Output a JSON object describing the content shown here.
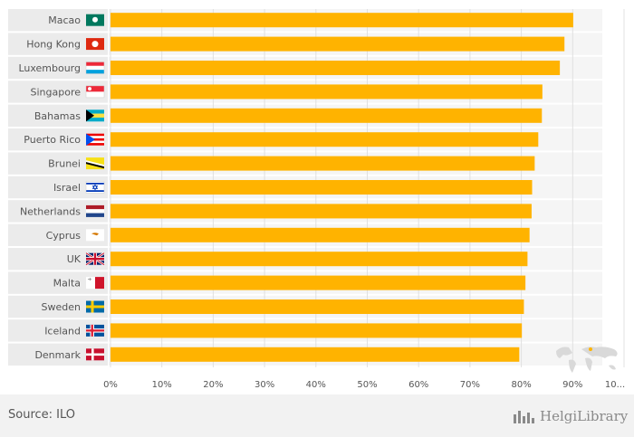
{
  "chart_data": {
    "type": "bar",
    "orientation": "horizontal",
    "categories": [
      "Macao",
      "Hong Kong",
      "Luxembourg",
      "Singapore",
      "Bahamas",
      "Puerto Rico",
      "Brunei",
      "Israel",
      "Netherlands",
      "Cyprus",
      "UK",
      "Malta",
      "Sweden",
      "Iceland",
      "Denmark"
    ],
    "values": [
      90.1,
      88.4,
      87.5,
      84.1,
      84.0,
      83.3,
      82.6,
      82.1,
      82.0,
      81.6,
      81.2,
      80.8,
      80.5,
      80.1,
      79.6
    ],
    "xlim": [
      0,
      100
    ],
    "xticks": [
      "0%",
      "10%",
      "20%",
      "30%",
      "40%",
      "50%",
      "60%",
      "70%",
      "80%",
      "90%",
      "10..."
    ],
    "grid": true,
    "colors": {
      "bar": "#FFB300",
      "band": "#ebebeb",
      "grid": "#e0e0e0",
      "label": "#555555"
    },
    "flags": [
      "macao-flag",
      "hong-kong-flag",
      "luxembourg-flag",
      "singapore-flag",
      "bahamas-flag",
      "puerto-rico-flag",
      "brunei-flag",
      "israel-flag",
      "netherlands-flag",
      "cyprus-flag",
      "uk-flag",
      "malta-flag",
      "sweden-flag",
      "iceland-flag",
      "denmark-flag"
    ]
  },
  "footer": {
    "source": "Source: ILO",
    "logo": "HelgiLibrary"
  }
}
